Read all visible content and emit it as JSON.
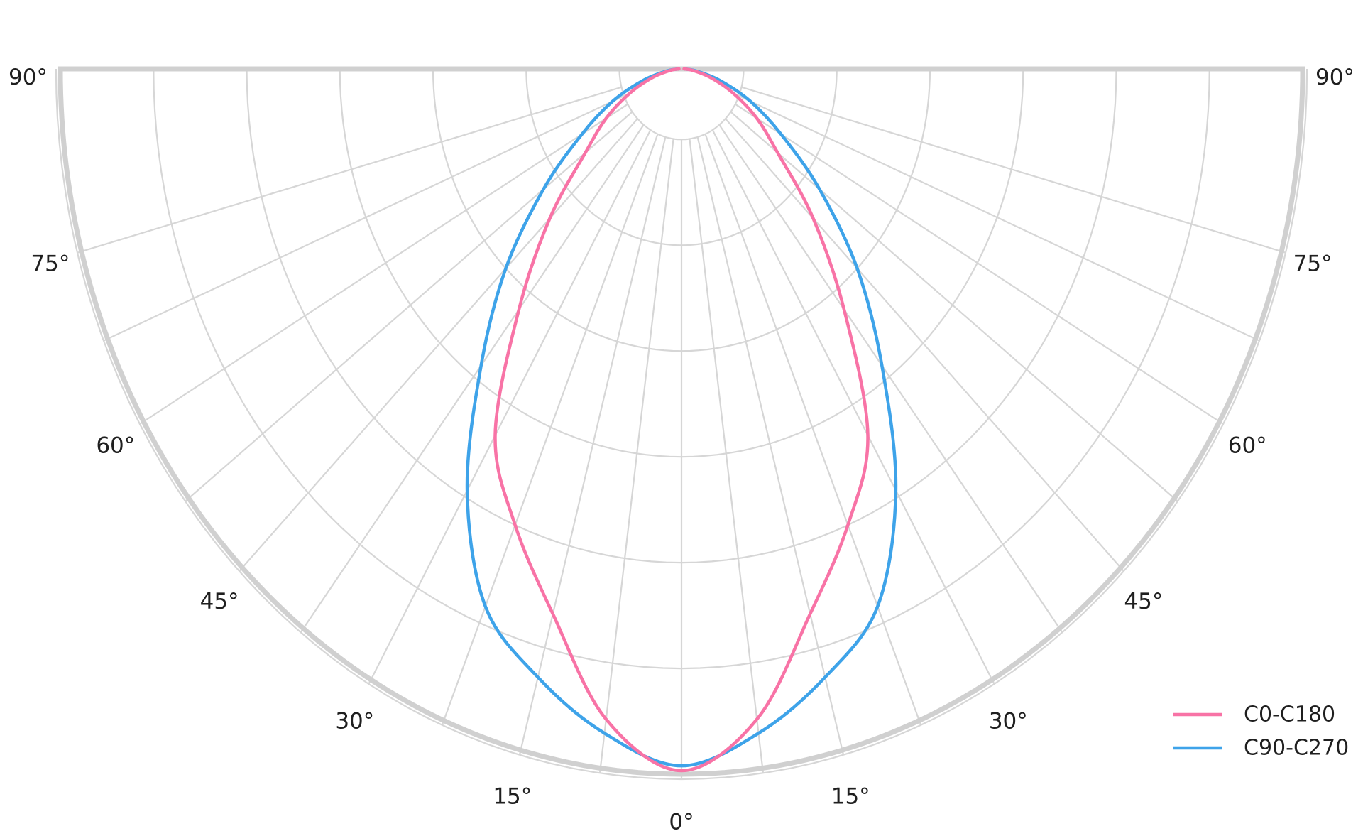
{
  "chart_data": {
    "type": "polar",
    "subtype": "luminous-intensity-distribution",
    "title": "",
    "orientation": "0° at bottom (nadir), angles increase symmetrically left/right up to 90° at horizontal",
    "angle_tick_labels": [
      {
        "angle": 0,
        "label": "0°"
      },
      {
        "angle": 15,
        "label": "15°"
      },
      {
        "angle": 30,
        "label": "30°"
      },
      {
        "angle": 45,
        "label": "45°"
      },
      {
        "angle": 60,
        "label": "60°"
      },
      {
        "angle": 75,
        "label": "75°"
      },
      {
        "angle": 90,
        "label": "90°"
      }
    ],
    "angle_labels_mirrored_both_sides": true,
    "spoke_interval_deg": 7.5,
    "spoke_max_deg": 75,
    "radial_gridlines_fraction_of_rmax": [
      0.1,
      0.25,
      0.4,
      0.55,
      0.7,
      0.85,
      1.0
    ],
    "radial_tick_labels_visible": false,
    "gamma_deg": [
      0,
      7.5,
      15,
      22.5,
      30,
      37.5,
      45,
      52.5,
      60,
      67.5,
      75,
      82.5,
      90
    ],
    "series": [
      {
        "name": "C0-C180",
        "color": "#f873a6",
        "relative_intensity": [
          0.995,
          0.93,
          0.8,
          0.7,
          0.6,
          0.43,
          0.3,
          0.195,
          0.14,
          0.09,
          0.05,
          0.02,
          0.004
        ]
      },
      {
        "name": "C90-C270",
        "color": "#3ea3e9",
        "relative_intensity": [
          0.988,
          0.95,
          0.893,
          0.825,
          0.69,
          0.53,
          0.4,
          0.28,
          0.185,
          0.12,
          0.065,
          0.025,
          0.005
        ]
      }
    ],
    "legend": {
      "position": "lower-right",
      "frame": false,
      "entries": [
        "C0-C180",
        "C90-C270"
      ]
    },
    "style": {
      "grid_color": "#d6d6d6",
      "spine_color": "#d0d0d0",
      "text_color": "#1f1f1f",
      "background": "#ffffff",
      "curve_width": 4.5,
      "grid_width": 2.2,
      "spine_width": 7,
      "label_font_size": 31
    }
  }
}
